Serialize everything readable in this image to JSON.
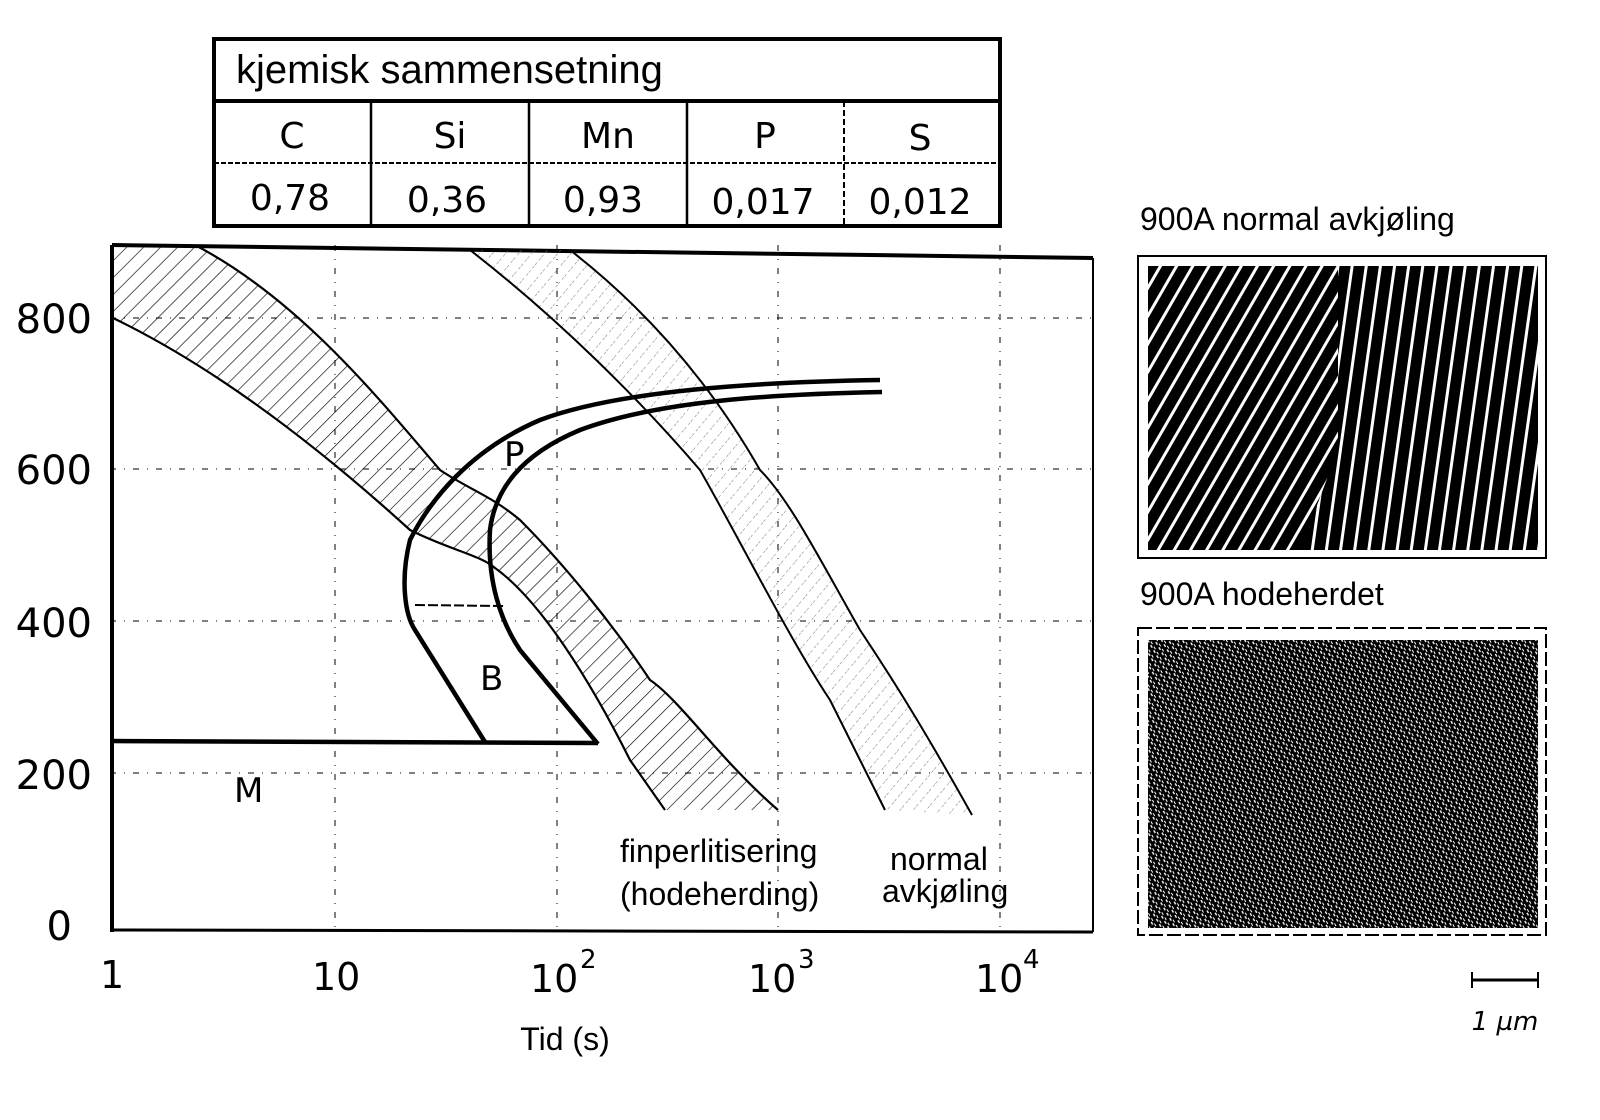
{
  "composition_table": {
    "title": "kjemisk sammensetning",
    "headers": [
      "C",
      "Si",
      "Mn",
      "P",
      "S"
    ],
    "values": [
      "0,78",
      "0,36",
      "0,93",
      "0,017",
      "0,012"
    ]
  },
  "diagram": {
    "y_ticks": [
      "800",
      "600",
      "400",
      "200",
      "0"
    ],
    "x_ticks": [
      {
        "base": "1",
        "exp": ""
      },
      {
        "base": "10",
        "exp": ""
      },
      {
        "base": "10",
        "exp": "2"
      },
      {
        "base": "10",
        "exp": "3"
      },
      {
        "base": "10",
        "exp": "4"
      }
    ],
    "x_label": "Tid (s)",
    "regions": {
      "pearlite": "P",
      "bainite": "B",
      "martensite": "M"
    },
    "curve_labels": {
      "head_hardening_line1": "finperlitisering",
      "head_hardening_line2": "(hodeherding)",
      "normal_line1": "normal",
      "normal_line2": "avkjøling"
    }
  },
  "micrographs": {
    "top_label": "900A normal avkjøling",
    "bottom_label": "900A hodeherdet",
    "scale_label": "1 µm"
  }
}
